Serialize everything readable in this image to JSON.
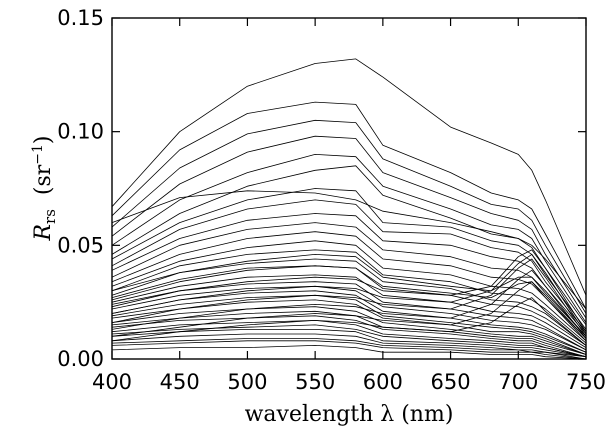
{
  "chart_data": {
    "type": "line",
    "title": "",
    "xlabel": "wavelength λ (nm)",
    "ylabel": {
      "symbol": "R",
      "subscript": "rs",
      "unit_open": "(sr",
      "unit_sup": "−1",
      "unit_close": ")"
    },
    "xlim": [
      400,
      750
    ],
    "ylim": [
      0,
      0.15
    ],
    "x_ticks": [
      400,
      450,
      500,
      550,
      600,
      650,
      700,
      750
    ],
    "y_ticks": [
      0.0,
      0.05,
      0.1,
      0.15
    ],
    "x_tick_labels": [
      "400",
      "450",
      "500",
      "550",
      "600",
      "650",
      "700",
      "750"
    ],
    "y_tick_labels": [
      "0.00",
      "0.05",
      "0.10",
      "0.15"
    ],
    "grid": false,
    "legend": "none",
    "line_color": "#000000",
    "x": [
      400,
      450,
      500,
      550,
      580,
      600,
      650,
      680,
      700,
      710,
      720,
      750
    ],
    "series": [
      {
        "values": [
          0.067,
          0.1,
          0.12,
          0.13,
          0.132,
          0.124,
          0.102,
          0.095,
          0.09,
          0.083,
          0.07,
          0.028
        ]
      },
      {
        "values": [
          0.063,
          0.092,
          0.108,
          0.113,
          0.112,
          0.094,
          0.082,
          0.073,
          0.07,
          0.066,
          0.055,
          0.022
        ]
      },
      {
        "values": [
          0.058,
          0.084,
          0.099,
          0.105,
          0.104,
          0.088,
          0.076,
          0.068,
          0.066,
          0.061,
          0.05,
          0.02
        ]
      },
      {
        "values": [
          0.054,
          0.077,
          0.091,
          0.098,
          0.097,
          0.082,
          0.071,
          0.064,
          0.061,
          0.057,
          0.046,
          0.018
        ]
      },
      {
        "values": [
          0.05,
          0.07,
          0.082,
          0.09,
          0.089,
          0.076,
          0.066,
          0.059,
          0.057,
          0.053,
          0.043,
          0.016
        ]
      },
      {
        "values": [
          0.046,
          0.064,
          0.076,
          0.083,
          0.085,
          0.072,
          0.062,
          0.055,
          0.053,
          0.049,
          0.04,
          0.015
        ]
      },
      {
        "values": [
          0.06,
          0.071,
          0.074,
          0.073,
          0.07,
          0.065,
          0.06,
          0.056,
          0.053,
          0.05,
          0.044,
          0.022
        ]
      },
      {
        "values": [
          0.044,
          0.06,
          0.07,
          0.075,
          0.074,
          0.06,
          0.058,
          0.052,
          0.05,
          0.046,
          0.037,
          0.013
        ]
      },
      {
        "values": [
          0.041,
          0.057,
          0.066,
          0.07,
          0.068,
          0.056,
          0.055,
          0.049,
          0.047,
          0.043,
          0.034,
          0.012
        ]
      },
      {
        "values": [
          0.039,
          0.053,
          0.061,
          0.064,
          0.063,
          0.052,
          0.05,
          0.045,
          0.043,
          0.04,
          0.032,
          0.011
        ]
      },
      {
        "values": [
          0.036,
          0.05,
          0.057,
          0.06,
          0.058,
          0.048,
          0.045,
          0.04,
          0.039,
          0.036,
          0.029,
          0.01
        ]
      },
      {
        "values": [
          0.034,
          0.046,
          0.053,
          0.056,
          0.054,
          0.044,
          0.041,
          0.036,
          0.035,
          0.033,
          0.027,
          0.009
        ]
      },
      {
        "values": [
          0.032,
          0.043,
          0.049,
          0.052,
          0.05,
          0.04,
          0.037,
          0.032,
          0.031,
          0.029,
          0.024,
          0.008
        ]
      },
      {
        "values": [
          0.03,
          0.041,
          0.046,
          0.048,
          0.047,
          0.037,
          0.034,
          0.029,
          0.028,
          0.026,
          0.022,
          0.007
        ]
      },
      {
        "values": [
          0.028,
          0.038,
          0.042,
          0.044,
          0.043,
          0.034,
          0.031,
          0.026,
          0.025,
          0.023,
          0.02,
          0.006
        ]
      },
      {
        "values": [
          0.027,
          0.035,
          0.04,
          0.041,
          0.04,
          0.031,
          0.028,
          0.024,
          0.023,
          0.021,
          0.018,
          0.006
        ]
      },
      {
        "values": [
          0.025,
          0.032,
          0.036,
          0.037,
          0.036,
          0.028,
          0.025,
          0.021,
          0.02,
          0.019,
          0.016,
          0.005
        ]
      },
      {
        "values": [
          0.023,
          0.03,
          0.033,
          0.034,
          0.033,
          0.025,
          0.022,
          0.019,
          0.018,
          0.017,
          0.014,
          0.004
        ]
      },
      {
        "values": [
          0.022,
          0.028,
          0.031,
          0.032,
          0.03,
          0.023,
          0.02,
          0.017,
          0.016,
          0.015,
          0.013,
          0.004
        ]
      },
      {
        "values": [
          0.02,
          0.026,
          0.029,
          0.03,
          0.028,
          0.021,
          0.018,
          0.015,
          0.014,
          0.013,
          0.011,
          0.003
        ]
      },
      {
        "values": [
          0.019,
          0.024,
          0.027,
          0.028,
          0.026,
          0.019,
          0.016,
          0.014,
          0.013,
          0.012,
          0.01,
          0.003
        ]
      },
      {
        "values": [
          0.018,
          0.022,
          0.025,
          0.026,
          0.024,
          0.018,
          0.015,
          0.012,
          0.012,
          0.011,
          0.009,
          0.002
        ]
      },
      {
        "values": [
          0.016,
          0.02,
          0.022,
          0.023,
          0.021,
          0.016,
          0.013,
          0.011,
          0.01,
          0.01,
          0.008,
          0.002
        ]
      },
      {
        "values": [
          0.015,
          0.018,
          0.02,
          0.021,
          0.019,
          0.014,
          0.012,
          0.01,
          0.009,
          0.009,
          0.007,
          0.002
        ]
      },
      {
        "values": [
          0.014,
          0.017,
          0.018,
          0.019,
          0.017,
          0.013,
          0.011,
          0.009,
          0.008,
          0.008,
          0.006,
          0.001
        ]
      },
      {
        "values": [
          0.012,
          0.015,
          0.016,
          0.017,
          0.015,
          0.011,
          0.009,
          0.008,
          0.007,
          0.007,
          0.005,
          0.001
        ]
      },
      {
        "values": [
          0.011,
          0.013,
          0.014,
          0.015,
          0.013,
          0.01,
          0.008,
          0.007,
          0.006,
          0.006,
          0.005,
          0.001
        ]
      },
      {
        "values": [
          0.01,
          0.012,
          0.013,
          0.013,
          0.012,
          0.008,
          0.007,
          0.006,
          0.005,
          0.005,
          0.004,
          0.001
        ]
      },
      {
        "values": [
          0.008,
          0.01,
          0.011,
          0.011,
          0.01,
          0.007,
          0.006,
          0.005,
          0.004,
          0.004,
          0.003,
          0.001
        ]
      },
      {
        "values": [
          0.007,
          0.008,
          0.009,
          0.009,
          0.008,
          0.006,
          0.005,
          0.004,
          0.004,
          0.003,
          0.003,
          0.0
        ]
      },
      {
        "values": [
          0.006,
          0.007,
          0.008,
          0.008,
          0.007,
          0.005,
          0.004,
          0.003,
          0.003,
          0.003,
          0.002,
          0.0
        ]
      },
      {
        "values": [
          0.004,
          0.005,
          0.005,
          0.006,
          0.005,
          0.003,
          0.003,
          0.002,
          0.002,
          0.002,
          0.001,
          0.0
        ]
      },
      {
        "values": [
          0.024,
          0.03,
          0.034,
          0.036,
          0.035,
          0.03,
          0.028,
          0.032,
          0.045,
          0.048,
          0.04,
          0.012
        ]
      },
      {
        "values": [
          0.02,
          0.026,
          0.03,
          0.032,
          0.031,
          0.027,
          0.025,
          0.03,
          0.042,
          0.046,
          0.038,
          0.011
        ]
      },
      {
        "values": [
          0.016,
          0.022,
          0.026,
          0.028,
          0.027,
          0.024,
          0.022,
          0.028,
          0.04,
          0.044,
          0.036,
          0.01
        ]
      },
      {
        "values": [
          0.013,
          0.018,
          0.022,
          0.024,
          0.023,
          0.02,
          0.018,
          0.024,
          0.035,
          0.039,
          0.032,
          0.009
        ]
      },
      {
        "values": [
          0.01,
          0.014,
          0.018,
          0.02,
          0.019,
          0.017,
          0.015,
          0.02,
          0.03,
          0.034,
          0.027,
          0.008
        ]
      },
      {
        "values": [
          0.008,
          0.012,
          0.015,
          0.017,
          0.016,
          0.014,
          0.012,
          0.016,
          0.024,
          0.027,
          0.021,
          0.006
        ]
      },
      {
        "values": [
          0.03,
          0.038,
          0.043,
          0.046,
          0.045,
          0.036,
          0.032,
          0.03,
          0.036,
          0.036,
          0.03,
          0.01
        ]
      },
      {
        "values": [
          0.026,
          0.034,
          0.039,
          0.041,
          0.04,
          0.032,
          0.029,
          0.027,
          0.033,
          0.034,
          0.028,
          0.009
        ]
      }
    ]
  }
}
